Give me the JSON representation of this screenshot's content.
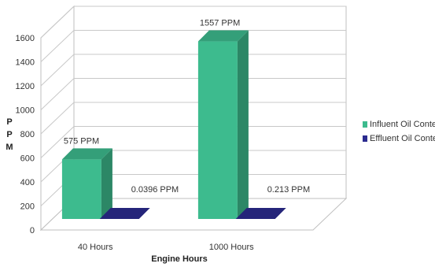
{
  "chart_data": {
    "type": "bar",
    "title": "",
    "xlabel": "Engine Hours",
    "ylabel": "PPM",
    "ylim": [
      0,
      1600
    ],
    "yticks": [
      0,
      200,
      400,
      600,
      800,
      1000,
      1200,
      1400,
      1600
    ],
    "categories": [
      "40 Hours",
      "1000 Hours"
    ],
    "series": [
      {
        "name": "Influent Oil Content",
        "values": [
          575,
          1557
        ],
        "labels": [
          "575 PPM",
          "1557 PPM"
        ],
        "color": "#3dbb8e"
      },
      {
        "name": "Effluent Oil Content",
        "values": [
          0.0396,
          0.213
        ],
        "labels": [
          "0.0396 PPM",
          "0.213 PPM"
        ],
        "color": "#2b2b8f"
      }
    ],
    "grid": true,
    "legend": "right",
    "style": "3d-clustered-column"
  }
}
